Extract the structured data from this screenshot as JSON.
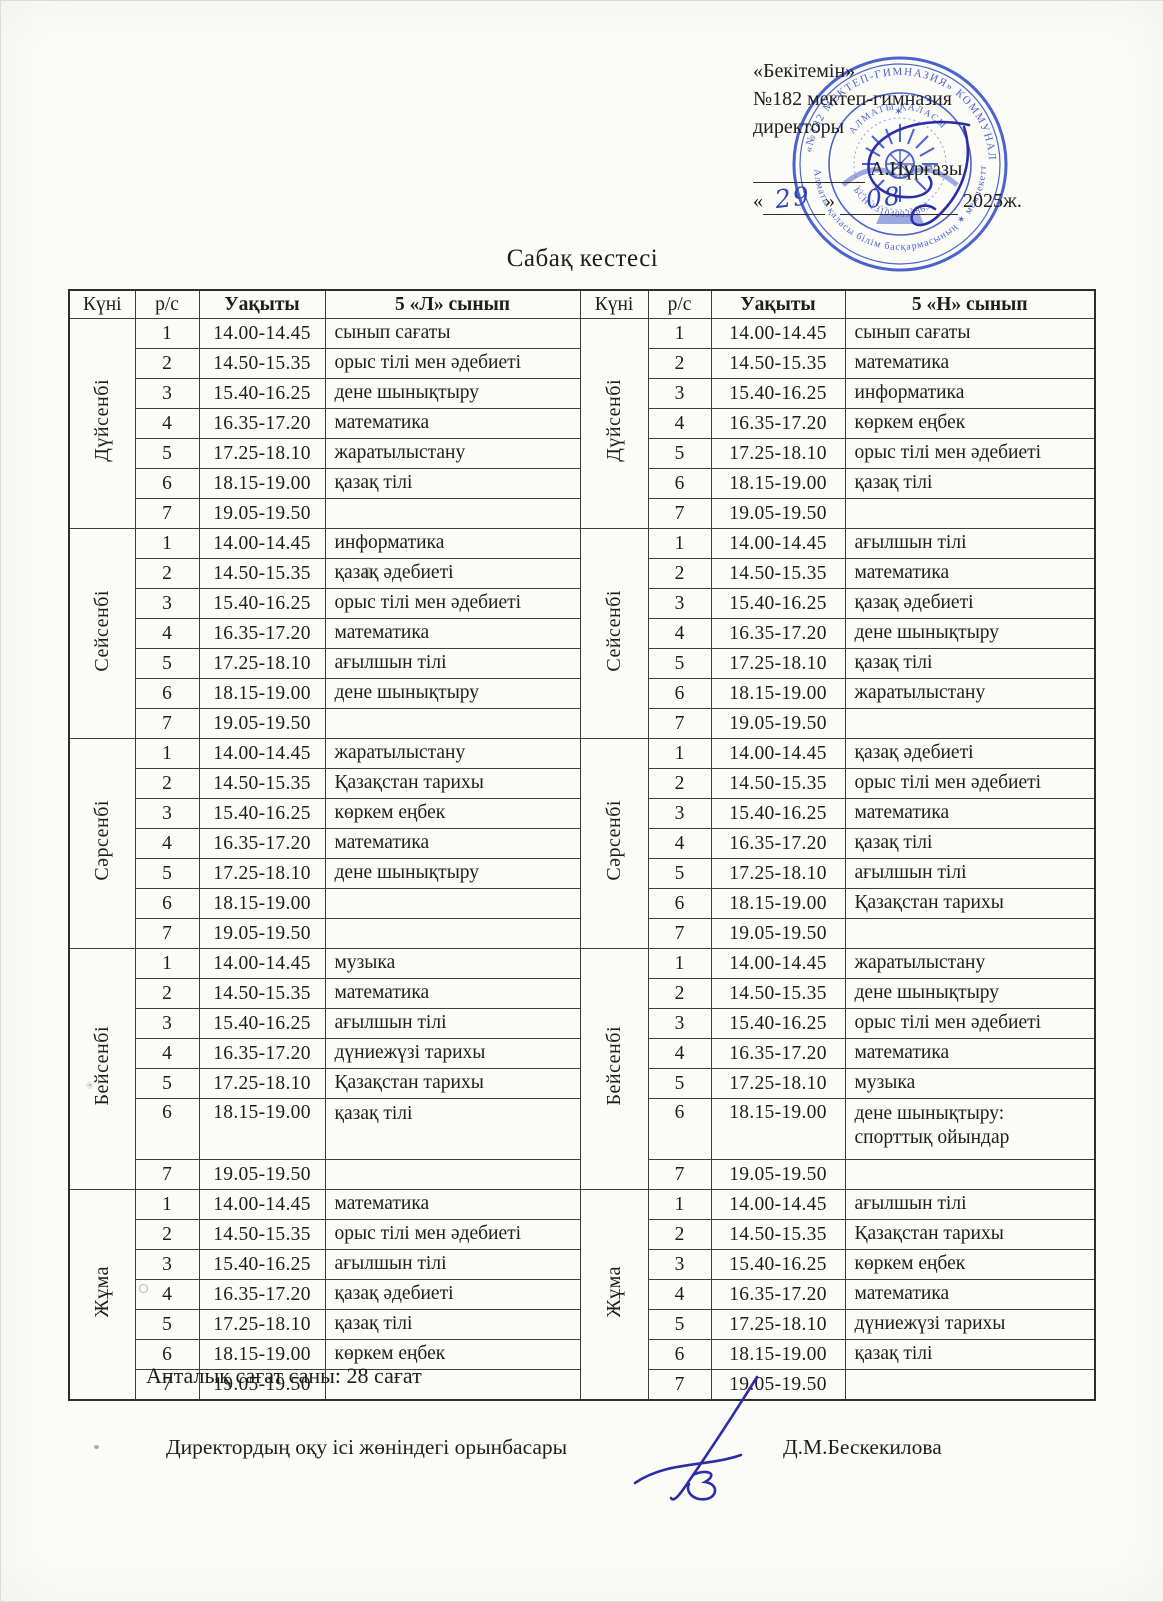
{
  "approval": {
    "line1": "«Бекітемін»",
    "line2": "№182 мектеп-гимназия",
    "line3": "директоры",
    "signer_name": "А.Нұрғазы",
    "open_quote": "«",
    "close_quote": "»",
    "date_day": "29",
    "date_month": "08",
    "date_year": "2025ж."
  },
  "stamp": {
    "ring_top": "«№182 МЕКТЕП-ГИМНАЗИЯ» КОММУНАЛДЫҚ",
    "ring_bottom": "Алматы қаласы білім басқармасының ✶ мемлекеттік мекемесі",
    "inner_top": "АЛМАТЫ ҚАЛАСЫ",
    "inner_bottom": "БСН 131040020865",
    "color": "#3f57c9"
  },
  "title": "Сабақ кестесі",
  "timetable": {
    "headers": {
      "day": "Күні",
      "num": "р/с",
      "time": "Уақыты",
      "class_l": "5 «Л» сынып",
      "class_n": "5 «Н» сынып"
    },
    "times": [
      "14.00-14.45",
      "14.50-15.35",
      "15.40-16.25",
      "16.35-17.20",
      "17.25-18.10",
      "18.15-19.00",
      "19.05-19.50"
    ],
    "days": [
      {
        "name": "Дүйсенбі",
        "L": [
          "сынып сағаты",
          "орыс тілі мен әдебиеті",
          "дене шынықтыру",
          "математика",
          "жаратылыстану",
          "қазақ тілі",
          ""
        ],
        "N": [
          "сынып сағаты",
          "математика",
          "информатика",
          "көркем еңбек",
          "орыс тілі мен әдебиеті",
          "қазақ тілі",
          ""
        ]
      },
      {
        "name": "Сейсенбі",
        "L": [
          "информатика",
          "қазақ әдебиеті",
          "орыс тілі мен әдебиеті",
          "математика",
          "ағылшын тілі",
          "дене шынықтыру",
          ""
        ],
        "N": [
          "ағылшын тілі",
          "математика",
          "қазақ әдебиеті",
          "дене шынықтыру",
          "қазақ тілі",
          "жаратылыстану",
          ""
        ]
      },
      {
        "name": "Сәрсенбі",
        "L": [
          "жаратылыстану",
          "Қазақстан тарихы",
          "көркем еңбек",
          "математика",
          "дене шынықтыру",
          "",
          ""
        ],
        "N": [
          "қазақ әдебиеті",
          "орыс тілі мен әдебиеті",
          "математика",
          "қазақ тілі",
          "ағылшын тілі",
          "Қазақстан тарихы",
          ""
        ]
      },
      {
        "name": "Бейсенбі",
        "tall_row": 5,
        "L": [
          "музыка",
          "математика",
          "ағылшын тілі",
          "дүниежүзі тарихы",
          "Қазақстан тарихы",
          "қазақ тілі",
          ""
        ],
        "N": [
          "жаратылыстану",
          "дене шынықтыру",
          "орыс тілі мен әдебиеті",
          "математика",
          "музыка",
          "дене шынықтыру:\nспорттық ойындар",
          ""
        ]
      },
      {
        "name": "Жұма",
        "L": [
          "математика",
          "орыс тілі мен әдебиеті",
          "ағылшын тілі",
          "қазақ әдебиеті",
          "қазақ тілі",
          "көркем еңбек",
          ""
        ],
        "N": [
          "ағылшын тілі",
          "Қазақстан тарихы",
          "көркем еңбек",
          "математика",
          "дүниежүзі тарихы",
          "қазақ тілі",
          ""
        ]
      }
    ]
  },
  "footer": {
    "weekly_hours": "Апталық сағат саны: 28 сағат",
    "deputy_label": "Директордың оқу ісі жөніндегі орынбасары",
    "deputy_name": "Д.М.Бескекилова"
  }
}
